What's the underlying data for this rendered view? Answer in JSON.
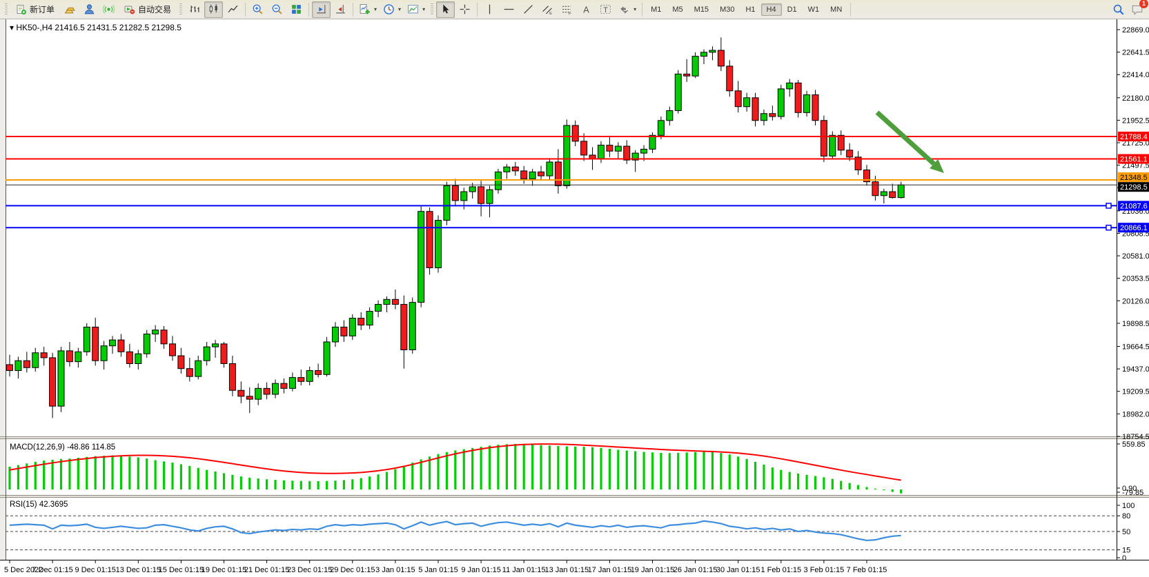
{
  "toolbar": {
    "new_order_label": "新订单",
    "auto_trading_label": "自动交易",
    "timeframes": [
      "M1",
      "M5",
      "M15",
      "M30",
      "H1",
      "H4",
      "D1",
      "W1",
      "MN"
    ],
    "active_timeframe": "H4",
    "notification_badge": "1"
  },
  "chart_data": [
    {
      "type": "candlestick",
      "title": "HK50-,H4 21416.5 21431.5 21282.5 21298.5",
      "symbol": "HK50-",
      "timeframe": "H4",
      "ohlc_current": {
        "open": "21416.5",
        "high": "21431.5",
        "low": "21282.5",
        "close": "21298.5"
      },
      "ylim": [
        18754.5,
        22869.0
      ],
      "yticks": [
        "22869.0",
        "22641.5",
        "22414.0",
        "22180.0",
        "21952.5",
        "21725.0",
        "21497.5",
        "21270.0",
        "21036.0",
        "20808.5",
        "20581.0",
        "20353.5",
        "20126.0",
        "19898.5",
        "19664.5",
        "19437.0",
        "19209.5",
        "18982.0",
        "18754.5"
      ],
      "xticklabels": [
        "5 Dec 2022",
        "7 Dec 01:15",
        "9 Dec 01:15",
        "13 Dec 01:15",
        "15 Dec 01:15",
        "19 Dec 01:15",
        "21 Dec 01:15",
        "23 Dec 01:15",
        "29 Dec 01:15",
        "3 Jan 01:15",
        "5 Jan 01:15",
        "9 Jan 01:15",
        "11 Jan 01:15",
        "13 Jan 01:15",
        "17 Jan 01:15",
        "19 Jan 01:15",
        "26 Jan 01:15",
        "30 Jan 01:15",
        "1 Feb 01:15",
        "3 Feb 01:15",
        "7 Feb 01:15"
      ],
      "colors": {
        "bull": "#00cc00",
        "bear": "#ee1c1c",
        "wick": "#000000"
      },
      "hlines": [
        {
          "price": 21788.4,
          "label": "21788.4",
          "color": "#ff0000",
          "width": 2,
          "badge_bg": "#ff0000",
          "badge_fg": "#ffffff",
          "handle": false
        },
        {
          "price": 21561.1,
          "label": "21561.1",
          "color": "#ff0000",
          "width": 2,
          "badge_bg": "#ff0000",
          "badge_fg": "#ffffff",
          "handle": false
        },
        {
          "price": 21348.5,
          "label": "21348.5",
          "color": "#ff9c00",
          "width": 2,
          "badge_bg": "#ff9c00",
          "badge_fg": "#000000",
          "handle": false
        },
        {
          "price": 21298.5,
          "label": "21298.5",
          "color": "#2b2b2b",
          "width": 1,
          "badge_bg": "#000000",
          "badge_fg": "#ffffff",
          "handle": false
        },
        {
          "price": 21087.6,
          "label": "21087.6",
          "color": "#0000ff",
          "width": 2,
          "badge_bg": "#0000ff",
          "badge_fg": "#ffffff",
          "handle": true
        },
        {
          "price": 20866.1,
          "label": "20866.1",
          "color": "#0000ff",
          "width": 2,
          "badge_bg": "#0000ff",
          "badge_fg": "#ffffff",
          "handle": true
        }
      ],
      "annotations": [
        {
          "type": "arrow",
          "from": [
            1271,
            163
          ],
          "to": [
            1368,
            251
          ],
          "color": "#4e9e3c",
          "thickness": 7
        }
      ],
      "candles": [
        [
          19480,
          19580,
          19360,
          19420
        ],
        [
          19420,
          19560,
          19340,
          19520
        ],
        [
          19520,
          19610,
          19400,
          19450
        ],
        [
          19450,
          19650,
          19410,
          19600
        ],
        [
          19600,
          19660,
          19470,
          19550
        ],
        [
          19550,
          19600,
          18940,
          19060
        ],
        [
          19060,
          19660,
          19000,
          19620
        ],
        [
          19620,
          19710,
          19460,
          19510
        ],
        [
          19510,
          19650,
          19450,
          19610
        ],
        [
          19610,
          19900,
          19570,
          19860
        ],
        [
          19860,
          19955,
          19470,
          19520
        ],
        [
          19520,
          19720,
          19430,
          19670
        ],
        [
          19670,
          19770,
          19590,
          19730
        ],
        [
          19730,
          19790,
          19560,
          19610
        ],
        [
          19610,
          19690,
          19450,
          19490
        ],
        [
          19490,
          19630,
          19430,
          19590
        ],
        [
          19590,
          19830,
          19550,
          19790
        ],
        [
          19790,
          19880,
          19710,
          19830
        ],
        [
          19830,
          19870,
          19640,
          19690
        ],
        [
          19690,
          19770,
          19520,
          19570
        ],
        [
          19570,
          19650,
          19390,
          19440
        ],
        [
          19440,
          19550,
          19310,
          19360
        ],
        [
          19360,
          19570,
          19330,
          19520
        ],
        [
          19520,
          19710,
          19470,
          19660
        ],
        [
          19660,
          19730,
          19550,
          19690
        ],
        [
          19690,
          19710,
          19450,
          19490
        ],
        [
          19490,
          19570,
          19160,
          19220
        ],
        [
          19220,
          19310,
          19090,
          19160
        ],
        [
          19160,
          19250,
          18990,
          19130
        ],
        [
          19130,
          19290,
          19070,
          19240
        ],
        [
          19240,
          19300,
          19130,
          19180
        ],
        [
          19180,
          19330,
          19140,
          19290
        ],
        [
          19290,
          19340,
          19190,
          19240
        ],
        [
          19240,
          19400,
          19210,
          19350
        ],
        [
          19350,
          19430,
          19270,
          19310
        ],
        [
          19310,
          19460,
          19270,
          19420
        ],
        [
          19420,
          19490,
          19350,
          19380
        ],
        [
          19380,
          19760,
          19360,
          19710
        ],
        [
          19710,
          19910,
          19660,
          19860
        ],
        [
          19860,
          19930,
          19710,
          19770
        ],
        [
          19770,
          19990,
          19730,
          19950
        ],
        [
          19950,
          20010,
          19830,
          19880
        ],
        [
          19880,
          20060,
          19840,
          20020
        ],
        [
          20020,
          20130,
          19960,
          20090
        ],
        [
          20090,
          20170,
          20010,
          20140
        ],
        [
          20140,
          20240,
          20040,
          20090
        ],
        [
          20090,
          20180,
          19440,
          19630
        ],
        [
          19630,
          20160,
          19590,
          20110
        ],
        [
          20110,
          21090,
          20060,
          21030
        ],
        [
          21030,
          21070,
          20390,
          20460
        ],
        [
          20460,
          20990,
          20410,
          20940
        ],
        [
          20940,
          21330,
          20890,
          21290
        ],
        [
          21290,
          21360,
          21090,
          21140
        ],
        [
          21140,
          21270,
          21050,
          21230
        ],
        [
          21230,
          21320,
          21160,
          21280
        ],
        [
          21280,
          21340,
          20980,
          21110
        ],
        [
          21110,
          21290,
          20970,
          21250
        ],
        [
          21250,
          21460,
          21210,
          21430
        ],
        [
          21430,
          21510,
          21360,
          21480
        ],
        [
          21480,
          21530,
          21390,
          21440
        ],
        [
          21440,
          21490,
          21310,
          21360
        ],
        [
          21360,
          21460,
          21290,
          21430
        ],
        [
          21430,
          21490,
          21340,
          21390
        ],
        [
          21390,
          21570,
          21350,
          21530
        ],
        [
          21530,
          21660,
          21210,
          21290
        ],
        [
          21290,
          21960,
          21260,
          21900
        ],
        [
          21900,
          21950,
          21690,
          21740
        ],
        [
          21740,
          21820,
          21540,
          21600
        ],
        [
          21600,
          21680,
          21450,
          21560
        ],
        [
          21560,
          21740,
          21520,
          21700
        ],
        [
          21700,
          21780,
          21580,
          21640
        ],
        [
          21640,
          21730,
          21560,
          21690
        ],
        [
          21690,
          21750,
          21510,
          21550
        ],
        [
          21550,
          21650,
          21430,
          21620
        ],
        [
          21620,
          21700,
          21540,
          21660
        ],
        [
          21660,
          21830,
          21620,
          21800
        ],
        [
          21800,
          21990,
          21760,
          21950
        ],
        [
          21950,
          22090,
          21900,
          22050
        ],
        [
          22050,
          22460,
          22020,
          22420
        ],
        [
          22420,
          22570,
          22340,
          22400
        ],
        [
          22400,
          22640,
          22380,
          22600
        ],
        [
          22600,
          22670,
          22520,
          22640
        ],
        [
          22640,
          22700,
          22560,
          22660
        ],
        [
          22660,
          22790,
          22450,
          22500
        ],
        [
          22500,
          22560,
          22190,
          22250
        ],
        [
          22250,
          22350,
          22030,
          22090
        ],
        [
          22090,
          22230,
          22040,
          22180
        ],
        [
          22180,
          22230,
          21890,
          21950
        ],
        [
          21950,
          22060,
          21900,
          22020
        ],
        [
          22020,
          22100,
          21950,
          21990
        ],
        [
          21990,
          22310,
          21960,
          22270
        ],
        [
          22270,
          22370,
          22190,
          22330
        ],
        [
          22330,
          22360,
          21980,
          22030
        ],
        [
          22030,
          22250,
          21990,
          22210
        ],
        [
          22210,
          22260,
          21900,
          21950
        ],
        [
          21950,
          22000,
          21530,
          21590
        ],
        [
          21590,
          21840,
          21560,
          21800
        ],
        [
          21800,
          21850,
          21600,
          21650
        ],
        [
          21650,
          21720,
          21540,
          21580
        ],
        [
          21580,
          21640,
          21400,
          21450
        ],
        [
          21450,
          21500,
          21290,
          21330
        ],
        [
          21330,
          21390,
          21140,
          21190
        ],
        [
          21190,
          21260,
          21110,
          21230
        ],
        [
          21230,
          21310,
          21160,
          21170
        ],
        [
          21170,
          21330,
          21160,
          21298.5
        ]
      ]
    },
    {
      "type": "bar",
      "name": "MACD",
      "label": "MACD(12,26,9) -48.86 114.85",
      "params": "(12,26,9)",
      "current_macd": "-48.86",
      "current_signal": "114.85",
      "yticks": [
        "559.85",
        "0.90",
        "-79.85"
      ],
      "range": [
        -80,
        560
      ],
      "colors": {
        "histogram": "#00cc00",
        "signal": "#ff0000"
      },
      "histogram": [
        280,
        300,
        320,
        340,
        355,
        365,
        375,
        380,
        390,
        400,
        410,
        415,
        420,
        415,
        405,
        395,
        380,
        360,
        345,
        330,
        310,
        290,
        265,
        240,
        220,
        200,
        180,
        160,
        145,
        135,
        125,
        118,
        112,
        108,
        105,
        103,
        102,
        104,
        108,
        115,
        125,
        140,
        160,
        185,
        215,
        250,
        290,
        330,
        370,
        405,
        435,
        460,
        480,
        495,
        510,
        525,
        540,
        550,
        557,
        560,
        558,
        552,
        545,
        540,
        535,
        530,
        528,
        525,
        520,
        512,
        500,
        488,
        478,
        470,
        462,
        455,
        450,
        448,
        450,
        455,
        460,
        462,
        458,
        448,
        430,
        405,
        375,
        340,
        305,
        270,
        240,
        215,
        195,
        180,
        165,
        150,
        130,
        105,
        80,
        55,
        30,
        10,
        -10,
        -30,
        -48.86
      ],
      "signal": [
        240,
        258,
        276,
        294,
        311,
        327,
        342,
        356,
        369,
        381,
        392,
        401,
        408,
        414,
        418,
        420,
        420,
        418,
        414,
        408,
        400,
        390,
        378,
        364,
        349,
        333,
        317,
        300,
        284,
        268,
        253,
        239,
        227,
        217,
        209,
        203,
        199,
        197,
        197,
        199,
        203,
        209,
        218,
        230,
        245,
        263,
        284,
        308,
        334,
        361,
        388,
        414,
        438,
        460,
        480,
        498,
        514,
        527,
        538,
        547,
        553,
        557,
        559,
        559,
        557,
        554,
        550,
        545,
        540,
        534,
        528,
        522,
        516,
        510,
        504,
        498,
        492,
        487,
        482,
        478,
        474,
        470,
        466,
        461,
        455,
        447,
        437,
        425,
        411,
        395,
        377,
        358,
        338,
        318,
        298,
        278,
        258,
        238,
        219,
        201,
        184,
        166,
        149,
        131,
        114.85
      ]
    },
    {
      "type": "line",
      "name": "RSI",
      "label": "RSI(15) 42.3695",
      "params": "(15)",
      "current": "42.3695",
      "yticks": [
        "100",
        "80",
        "50",
        "15",
        "0"
      ],
      "levels": [
        80,
        50,
        15
      ],
      "range": [
        0,
        100
      ],
      "color": "#3c8dde",
      "values": [
        62,
        63,
        64,
        63,
        62,
        55,
        62,
        61,
        62,
        64,
        58,
        56,
        58,
        60,
        58,
        56,
        57,
        62,
        63,
        60,
        57,
        53,
        51,
        56,
        59,
        60,
        55,
        48,
        46,
        49,
        51,
        53,
        52,
        54,
        53,
        55,
        54,
        60,
        63,
        61,
        63,
        62,
        64,
        65,
        66,
        63,
        55,
        61,
        68,
        62,
        66,
        69,
        63,
        65,
        66,
        60,
        64,
        67,
        68,
        65,
        62,
        64,
        62,
        65,
        59,
        66,
        62,
        60,
        58,
        61,
        59,
        62,
        58,
        60,
        61,
        59,
        57,
        62,
        63,
        65,
        66,
        70,
        68,
        65,
        60,
        58,
        55,
        57,
        54,
        56,
        53,
        55,
        50,
        52,
        49,
        47,
        46,
        44,
        40,
        36,
        33,
        34,
        38,
        41,
        42.37
      ]
    }
  ]
}
